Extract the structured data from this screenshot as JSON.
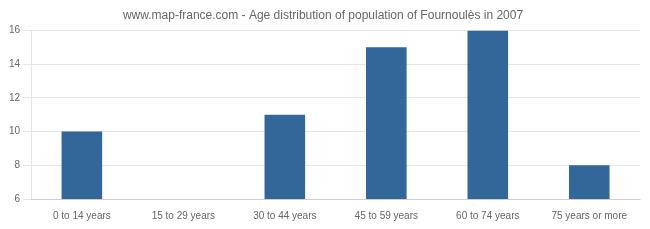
{
  "chart_data": {
    "type": "bar",
    "title": "www.map-france.com - Age distribution of population of Fournoulès in 2007",
    "categories": [
      "0 to 14 years",
      "15 to 29 years",
      "30 to 44 years",
      "45 to 59 years",
      "60 to 74 years",
      "75 years or more"
    ],
    "values": [
      10,
      6,
      11,
      15,
      16,
      8
    ],
    "color": "#336699",
    "ylim": [
      6,
      16
    ],
    "yticks": [
      6,
      8,
      10,
      12,
      14,
      16
    ],
    "grid": true
  }
}
